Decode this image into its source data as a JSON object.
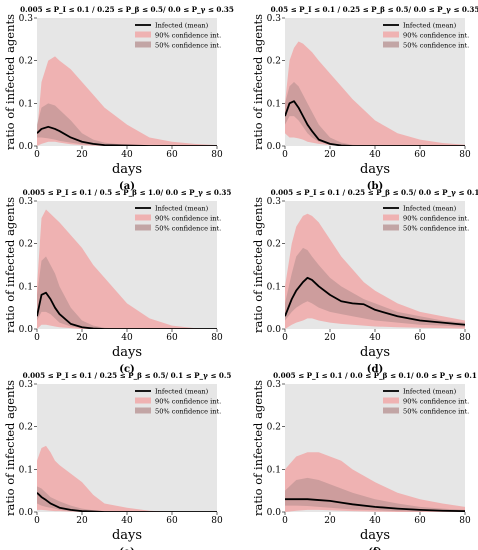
{
  "figure": {
    "panels": [
      {
        "label": "(a)",
        "title": "0.005 ≤ P_I ≤ 0.1 / 0.25 ≤ P_β ≤ 0.5/ 0.0 ≤ P_γ ≤ 0.35"
      },
      {
        "label": "(b)",
        "title": "0.05 ≤ P_I ≤ 0.1 / 0.25 ≤ P_β ≤ 0.5/ 0.0 ≤ P_γ ≤ 0.35"
      },
      {
        "label": "(c)",
        "title": "0.005 ≤ P_I ≤ 0.1 / 0.5 ≤ P_β ≤ 1.0/ 0.0 ≤ P_γ ≤ 0.35"
      },
      {
        "label": "(d)",
        "title": "0.005 ≤ P_I ≤ 0.1 / 0.25 ≤ P_β ≤ 0.5/ 0.0 ≤ P_γ ≤ 0.1"
      },
      {
        "label": "(e)",
        "title": "0.005 ≤ P_I ≤ 0.1 / 0.25 ≤ P_β ≤ 0.5/ 0.1 ≤ P_γ ≤ 0.5"
      },
      {
        "label": "(f)",
        "title": "0.005 ≤ P_I ≤ 0.1 / 0.0 ≤ P_β ≤ 0.1/ 0.0 ≤ P_γ ≤ 0.1"
      }
    ]
  },
  "colors": {
    "plot_bg": "#e6e6e6",
    "ci90": "#f0a8a8",
    "ci50": "#b58f8f",
    "mean": "#000000"
  },
  "chart_data": [
    {
      "type": "area",
      "title": "0.005 ≤ P_I ≤ 0.1 / 0.25 ≤ P_β ≤ 0.5/ 0.0 ≤ P_γ ≤ 0.35",
      "xlabel": "days",
      "ylabel": "ratio of infected agents",
      "xlim": [
        0,
        80
      ],
      "ylim": [
        0,
        0.3
      ],
      "xticks": [
        0,
        20,
        40,
        60,
        80
      ],
      "yticks": [
        0.0,
        0.1,
        0.2,
        0.3
      ],
      "legend": [
        "Infected (mean)",
        "90% confidence int.",
        "50% confidence int."
      ],
      "legend_position": "top-right",
      "x": [
        0,
        2,
        5,
        8,
        10,
        15,
        20,
        25,
        30,
        40,
        50,
        60,
        70,
        80
      ],
      "mean": [
        0.03,
        0.04,
        0.045,
        0.04,
        0.035,
        0.02,
        0.01,
        0.005,
        0.002,
        0.001,
        0,
        0,
        0,
        0
      ],
      "ci90_low": [
        0.0,
        0.005,
        0.01,
        0.01,
        0.008,
        0.004,
        0.002,
        0.001,
        0,
        0,
        0,
        0,
        0,
        0
      ],
      "ci90_high": [
        0.03,
        0.15,
        0.2,
        0.21,
        0.2,
        0.18,
        0.15,
        0.12,
        0.09,
        0.05,
        0.02,
        0.01,
        0.005,
        0.002
      ],
      "ci50_low": [
        0.02,
        0.02,
        0.018,
        0.015,
        0.012,
        0.008,
        0.004,
        0.002,
        0.001,
        0,
        0,
        0,
        0,
        0
      ],
      "ci50_high": [
        0.05,
        0.09,
        0.1,
        0.095,
        0.085,
        0.06,
        0.03,
        0.015,
        0.008,
        0.002,
        0,
        0,
        0,
        0
      ]
    },
    {
      "type": "area",
      "title": "0.05 ≤ P_I ≤ 0.1 / 0.25 ≤ P_β ≤ 0.5/ 0.0 ≤ P_γ ≤ 0.35",
      "xlabel": "days",
      "ylabel": "ratio of infected agents",
      "xlim": [
        0,
        80
      ],
      "ylim": [
        0,
        0.3
      ],
      "xticks": [
        0,
        20,
        40,
        60,
        80
      ],
      "yticks": [
        0.0,
        0.1,
        0.2,
        0.3
      ],
      "legend": [
        "Infected (mean)",
        "90% confidence int.",
        "50% confidence int."
      ],
      "legend_position": "top-right",
      "x": [
        0,
        2,
        4,
        6,
        8,
        10,
        12,
        15,
        20,
        25,
        30,
        40,
        50,
        60,
        70,
        80
      ],
      "mean": [
        0.07,
        0.1,
        0.105,
        0.09,
        0.07,
        0.05,
        0.035,
        0.015,
        0.005,
        0.001,
        0,
        0,
        0,
        0,
        0,
        0
      ],
      "ci90_low": [
        0.03,
        0.02,
        0.02,
        0.018,
        0.015,
        0.01,
        0.008,
        0.005,
        0.002,
        0,
        0,
        0,
        0,
        0,
        0,
        0
      ],
      "ci90_high": [
        0.1,
        0.2,
        0.23,
        0.245,
        0.24,
        0.23,
        0.22,
        0.2,
        0.17,
        0.14,
        0.11,
        0.06,
        0.03,
        0.015,
        0.007,
        0.003
      ],
      "ci50_low": [
        0.05,
        0.07,
        0.07,
        0.06,
        0.045,
        0.03,
        0.02,
        0.01,
        0.003,
        0.001,
        0,
        0,
        0,
        0,
        0,
        0
      ],
      "ci50_high": [
        0.1,
        0.14,
        0.15,
        0.14,
        0.12,
        0.1,
        0.08,
        0.05,
        0.02,
        0.008,
        0.003,
        0,
        0,
        0,
        0,
        0
      ]
    },
    {
      "type": "area",
      "title": "0.005 ≤ P_I ≤ 0.1 / 0.5 ≤ P_β ≤ 1.0/ 0.0 ≤ P_γ ≤ 0.35",
      "xlabel": "days",
      "ylabel": "ratio of infected agents",
      "xlim": [
        0,
        80
      ],
      "ylim": [
        0,
        0.3
      ],
      "xticks": [
        0,
        20,
        40,
        60,
        80
      ],
      "yticks": [
        0.0,
        0.1,
        0.2,
        0.3
      ],
      "legend": [
        "Infected (mean)",
        "90% confidence int.",
        "50% confidence int."
      ],
      "legend_position": "top-right",
      "x": [
        0,
        2,
        4,
        6,
        8,
        10,
        15,
        20,
        25,
        30,
        40,
        50,
        60,
        70,
        80
      ],
      "mean": [
        0.03,
        0.08,
        0.085,
        0.07,
        0.05,
        0.035,
        0.012,
        0.004,
        0.001,
        0,
        0,
        0,
        0,
        0,
        0
      ],
      "ci90_low": [
        0.0,
        0.01,
        0.01,
        0.008,
        0.006,
        0.004,
        0.002,
        0,
        0,
        0,
        0,
        0,
        0,
        0,
        0
      ],
      "ci90_high": [
        0.1,
        0.26,
        0.28,
        0.27,
        0.26,
        0.25,
        0.22,
        0.19,
        0.15,
        0.12,
        0.06,
        0.025,
        0.008,
        0.002,
        0
      ],
      "ci50_low": [
        0.02,
        0.04,
        0.04,
        0.035,
        0.025,
        0.015,
        0.006,
        0.002,
        0,
        0,
        0,
        0,
        0,
        0,
        0
      ],
      "ci50_high": [
        0.08,
        0.16,
        0.17,
        0.15,
        0.13,
        0.1,
        0.05,
        0.02,
        0.008,
        0.003,
        0,
        0,
        0,
        0,
        0
      ]
    },
    {
      "type": "area",
      "title": "0.005 ≤ P_I ≤ 0.1 / 0.25 ≤ P_β ≤ 0.5/ 0.0 ≤ P_γ ≤ 0.1",
      "xlabel": "days",
      "ylabel": "ratio of infected agents",
      "xlim": [
        0,
        80
      ],
      "ylim": [
        0,
        0.3
      ],
      "xticks": [
        0,
        20,
        40,
        60,
        80
      ],
      "yticks": [
        0.0,
        0.1,
        0.2,
        0.3
      ],
      "legend": [
        "Infected (mean)",
        "90% confidence int.",
        "50% confidence int."
      ],
      "legend_position": "top-right",
      "x": [
        0,
        3,
        5,
        8,
        10,
        12,
        15,
        20,
        25,
        30,
        35,
        40,
        50,
        60,
        70,
        80
      ],
      "mean": [
        0.03,
        0.07,
        0.09,
        0.11,
        0.12,
        0.115,
        0.1,
        0.08,
        0.065,
        0.06,
        0.058,
        0.045,
        0.03,
        0.02,
        0.015,
        0.01
      ],
      "ci90_low": [
        0.0,
        0.01,
        0.015,
        0.02,
        0.025,
        0.025,
        0.02,
        0.015,
        0.012,
        0.01,
        0.008,
        0.006,
        0.004,
        0.003,
        0.002,
        0.001
      ],
      "ci90_high": [
        0.1,
        0.2,
        0.24,
        0.265,
        0.27,
        0.265,
        0.25,
        0.21,
        0.17,
        0.14,
        0.11,
        0.09,
        0.06,
        0.04,
        0.03,
        0.02
      ],
      "ci50_low": [
        0.02,
        0.04,
        0.05,
        0.06,
        0.065,
        0.06,
        0.05,
        0.04,
        0.035,
        0.03,
        0.025,
        0.02,
        0.015,
        0.01,
        0.008,
        0.005
      ],
      "ci50_high": [
        0.06,
        0.13,
        0.17,
        0.19,
        0.185,
        0.17,
        0.15,
        0.12,
        0.1,
        0.085,
        0.07,
        0.06,
        0.04,
        0.03,
        0.02,
        0.015
      ]
    },
    {
      "type": "area",
      "title": "0.005 ≤ P_I ≤ 0.1 / 0.25 ≤ P_β ≤ 0.5/ 0.1 ≤ P_γ ≤ 0.5",
      "xlabel": "days",
      "ylabel": "ratio of infected agents",
      "xlim": [
        0,
        80
      ],
      "ylim": [
        0,
        0.3
      ],
      "xticks": [
        0,
        20,
        40,
        60,
        80
      ],
      "yticks": [
        0.0,
        0.1,
        0.2,
        0.3
      ],
      "legend": [
        "Infected (mean)",
        "90% confidence int.",
        "50% confidence int."
      ],
      "legend_position": "top-right",
      "x": [
        0,
        2,
        4,
        6,
        8,
        10,
        15,
        20,
        25,
        30,
        40,
        50,
        60,
        70,
        80
      ],
      "mean": [
        0.045,
        0.035,
        0.028,
        0.02,
        0.015,
        0.01,
        0.005,
        0.002,
        0.001,
        0,
        0,
        0,
        0,
        0,
        0
      ],
      "ci90_low": [
        0.005,
        0.005,
        0.004,
        0.003,
        0.002,
        0.002,
        0.001,
        0,
        0,
        0,
        0,
        0,
        0,
        0,
        0
      ],
      "ci90_high": [
        0.12,
        0.15,
        0.155,
        0.14,
        0.12,
        0.11,
        0.09,
        0.07,
        0.04,
        0.02,
        0.01,
        0.003,
        0,
        0,
        0
      ],
      "ci50_low": [
        0.02,
        0.015,
        0.012,
        0.01,
        0.008,
        0.005,
        0.002,
        0.001,
        0,
        0,
        0,
        0,
        0,
        0,
        0
      ],
      "ci50_high": [
        0.06,
        0.055,
        0.045,
        0.035,
        0.03,
        0.025,
        0.015,
        0.008,
        0.004,
        0.002,
        0,
        0,
        0,
        0,
        0
      ]
    },
    {
      "type": "area",
      "title": "0.005 ≤ P_I ≤ 0.1 / 0.0 ≤ P_β ≤ 0.1/ 0.0 ≤ P_γ ≤ 0.1",
      "xlabel": "days",
      "ylabel": "ratio of infected agents",
      "xlim": [
        0,
        80
      ],
      "ylim": [
        0,
        0.3
      ],
      "xticks": [
        0,
        20,
        40,
        60,
        80
      ],
      "yticks": [
        0.0,
        0.1,
        0.2,
        0.3
      ],
      "legend": [
        "Infected (mean)",
        "90% confidence int.",
        "50% confidence int."
      ],
      "legend_position": "top-right",
      "x": [
        0,
        5,
        10,
        15,
        20,
        25,
        30,
        40,
        50,
        60,
        70,
        80
      ],
      "mean": [
        0.03,
        0.03,
        0.03,
        0.028,
        0.026,
        0.022,
        0.018,
        0.012,
        0.008,
        0.005,
        0.003,
        0.002
      ],
      "ci90_low": [
        0.0,
        0.003,
        0.005,
        0.005,
        0.004,
        0.003,
        0.002,
        0.001,
        0,
        0,
        0,
        0
      ],
      "ci90_high": [
        0.1,
        0.13,
        0.14,
        0.14,
        0.13,
        0.12,
        0.1,
        0.07,
        0.045,
        0.03,
        0.02,
        0.012
      ],
      "ci50_low": [
        0.015,
        0.015,
        0.014,
        0.012,
        0.01,
        0.008,
        0.006,
        0.004,
        0.002,
        0.001,
        0.001,
        0
      ],
      "ci50_high": [
        0.05,
        0.075,
        0.08,
        0.075,
        0.065,
        0.055,
        0.045,
        0.03,
        0.02,
        0.012,
        0.008,
        0.005
      ]
    }
  ]
}
